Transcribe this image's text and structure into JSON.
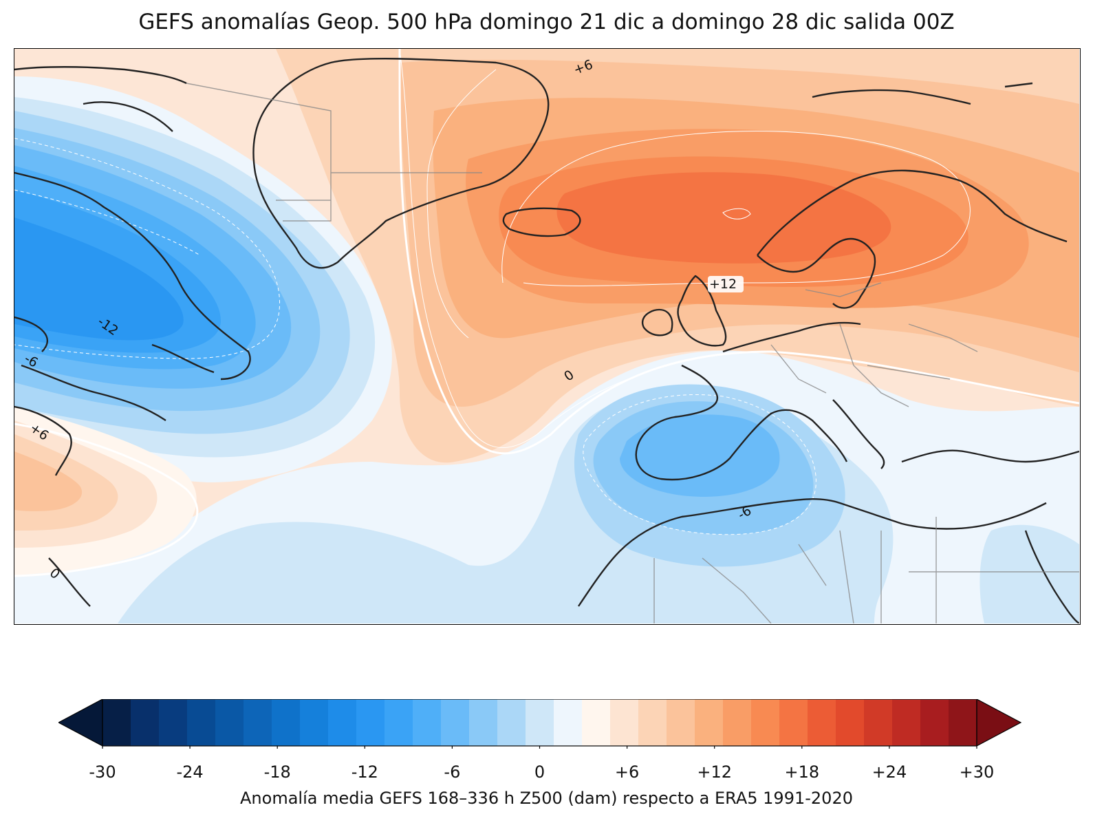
{
  "title": "GEFS anomalías Geop. 500 hPa domingo 21 dic a domingo 28 dic salida 00Z",
  "colorbar": {
    "label": "Anomalía media GEFS 168–336 h Z500 (dam) respecto a ERA5 1991-2020",
    "ticks": [
      "-30",
      "-24",
      "-18",
      "-12",
      "-6",
      "0",
      "+6",
      "+12",
      "+18",
      "+24",
      "+30"
    ],
    "levels_min": -30,
    "levels_max": 30,
    "level_step": 2,
    "colors": [
      "#061f47",
      "#08306b",
      "#083c7f",
      "#084b94",
      "#0a58a6",
      "#0d65b8",
      "#0f72ca",
      "#1580db",
      "#1e8ce9",
      "#2a97f2",
      "#3aa3f6",
      "#4faff8",
      "#6abbf8",
      "#8ac9f7",
      "#abd7f7",
      "#cfe7f8",
      "#eef6fd",
      "#fff6ee",
      "#fde4d2",
      "#fcd4b6",
      "#fbc39b",
      "#fab17e",
      "#f99d66",
      "#f88a52",
      "#f47443",
      "#ec5c35",
      "#e24a2c",
      "#d13a27",
      "#bf2b23",
      "#a81d1f",
      "#8f1519"
    ],
    "extend_low_color": "#051838",
    "extend_high_color": "#7a0e14"
  },
  "contour_labels": [
    {
      "text": "+6"
    },
    {
      "text": "+12"
    },
    {
      "text": "-12"
    },
    {
      "text": "-6"
    },
    {
      "text": "0"
    },
    {
      "text": "+6"
    },
    {
      "text": "-6"
    },
    {
      "text": "0"
    }
  ]
}
